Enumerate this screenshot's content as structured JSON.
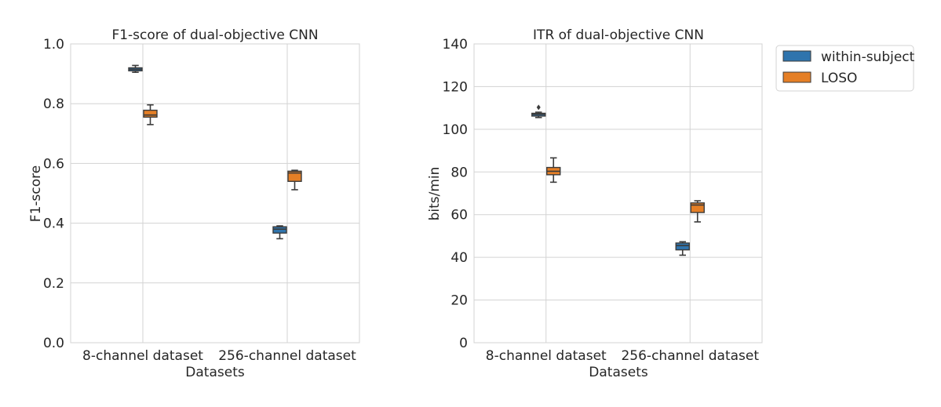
{
  "colors": {
    "within_subject": "#2f74ad",
    "loso": "#e57f26",
    "grid": "#d3d3d3",
    "frame": "#d3d3d3",
    "whisker": "#3b3b3b"
  },
  "legend": {
    "placement": "outside-top-right",
    "entries": [
      "within-subject",
      "LOSO"
    ]
  },
  "chart_data": [
    {
      "type": "box",
      "title": "F1-score of dual-objective CNN",
      "xlabel": "Datasets",
      "ylabel": "F1-score",
      "categories": [
        "8-channel dataset",
        "256-channel dataset"
      ],
      "ylim": [
        0.0,
        1.0
      ],
      "yticks": [
        "0.0",
        "0.2",
        "0.4",
        "0.6",
        "0.8",
        "1.0"
      ],
      "grid": true,
      "series": [
        {
          "name": "within-subject",
          "boxes": [
            {
              "min": 0.905,
              "q1": 0.91,
              "median": 0.915,
              "q3": 0.92,
              "max": 0.928,
              "outliers": []
            },
            {
              "min": 0.348,
              "q1": 0.367,
              "median": 0.38,
              "q3": 0.388,
              "max": 0.391,
              "outliers": []
            }
          ]
        },
        {
          "name": "LOSO",
          "boxes": [
            {
              "min": 0.73,
              "q1": 0.755,
              "median": 0.762,
              "q3": 0.778,
              "max": 0.796,
              "outliers": []
            },
            {
              "min": 0.512,
              "q1": 0.54,
              "median": 0.568,
              "q3": 0.574,
              "max": 0.577,
              "outliers": []
            }
          ]
        }
      ]
    },
    {
      "type": "box",
      "title": "ITR of dual-objective CNN",
      "xlabel": "Datasets",
      "ylabel": "bits/min",
      "categories": [
        "8-channel dataset",
        "256-channel dataset"
      ],
      "ylim": [
        0,
        140
      ],
      "yticks": [
        "0",
        "20",
        "40",
        "60",
        "80",
        "100",
        "120",
        "140"
      ],
      "grid": true,
      "series": [
        {
          "name": "within-subject",
          "boxes": [
            {
              "min": 105.5,
              "q1": 106.2,
              "median": 107.0,
              "q3": 107.5,
              "max": 108.0,
              "outliers": [
                110.3
              ]
            },
            {
              "min": 41.0,
              "q1": 43.5,
              "median": 45.5,
              "q3": 46.7,
              "max": 47.3,
              "outliers": []
            }
          ]
        },
        {
          "name": "LOSO",
          "boxes": [
            {
              "min": 75.2,
              "q1": 78.7,
              "median": 80.3,
              "q3": 82.1,
              "max": 86.6,
              "outliers": []
            },
            {
              "min": 56.6,
              "q1": 61.0,
              "median": 64.5,
              "q3": 65.5,
              "max": 66.5,
              "outliers": []
            }
          ]
        }
      ]
    }
  ]
}
